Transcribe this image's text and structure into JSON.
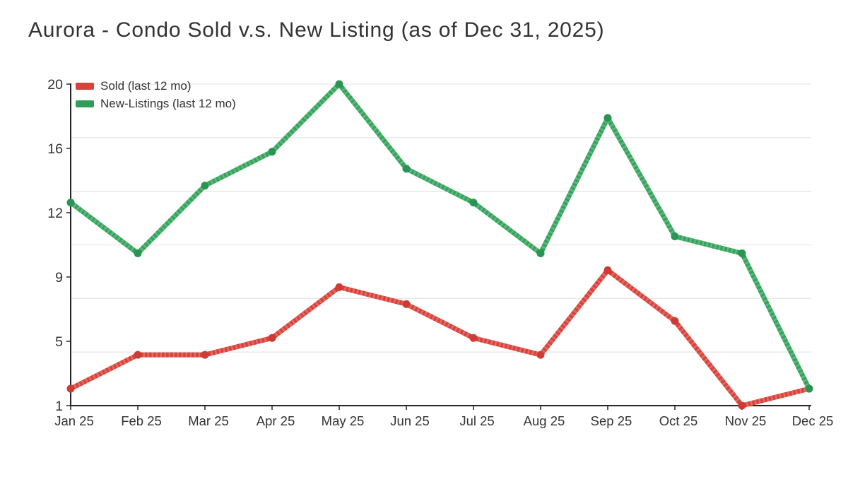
{
  "title": "Aurora - Condo Sold v.s. New Listing (as of Dec 31, 2025)",
  "legend": {
    "items": [
      {
        "label": "Sold (last 12 mo)",
        "color": "#d9413a"
      },
      {
        "label": "New-Listings (last 12 mo)",
        "color": "#2f9e57"
      }
    ]
  },
  "chart_data": {
    "type": "line",
    "title": "Aurora - Condo Sold v.s. New Listing (as of Dec 31, 2025)",
    "xlabel": "",
    "ylabel": "",
    "categories": [
      "Jan 25",
      "Feb 25",
      "Mar 25",
      "Apr 25",
      "May 25",
      "Jun 25",
      "Jul 25",
      "Aug 25",
      "Sep 25",
      "Oct 25",
      "Nov 25",
      "Dec 25"
    ],
    "series": [
      {
        "name": "Sold (last 12 mo)",
        "line_color": "#d9433c",
        "marker_color": "#ce3a34",
        "values": [
          2,
          4,
          4,
          5,
          8,
          7,
          5,
          4,
          9,
          6,
          1,
          2
        ]
      },
      {
        "name": "New-Listings (last 12 mo)",
        "line_color": "#35a45c",
        "marker_color": "#299552",
        "values": [
          13,
          10,
          14,
          16,
          20,
          15,
          13,
          10,
          18,
          11,
          10,
          2
        ]
      }
    ],
    "ylim": [
      1,
      20
    ],
    "y_tick_labels": [
      "20",
      "16",
      "12",
      "9",
      "5",
      "1"
    ],
    "grid": {
      "on": true,
      "color": "#e7e7e7",
      "divisions": 6
    },
    "axis_color": "#262626",
    "text_color": "#333333",
    "legend_position": "top-left-inside"
  }
}
